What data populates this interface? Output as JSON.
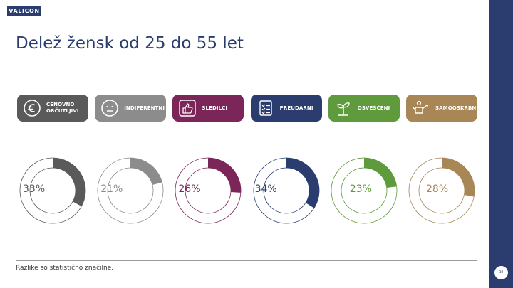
{
  "logo": {
    "text": "VALICON"
  },
  "title": "Delež žensk od 25 do 55 let",
  "footnote": "Razlike so statistično značilne.",
  "page_number": "19",
  "segments": [
    {
      "name": "CENOVNO OBČUTLJIVI",
      "lines": [
        "CENOVNO",
        "OBČUTLJIVI"
      ],
      "icon": "euro-icon",
      "color": "#5a5a5a"
    },
    {
      "name": "INDIFERENTNI",
      "lines": [
        "INDIFERENTNI"
      ],
      "icon": "neutral-face-icon",
      "color": "#8c8c8c"
    },
    {
      "name": "SLEDILCI",
      "lines": [
        "SLEDILCI"
      ],
      "icon": "thumbs-up-icon",
      "color": "#7b2559"
    },
    {
      "name": "PREUDARNI",
      "lines": [
        "PREUDARNI"
      ],
      "icon": "checklist-icon",
      "color": "#2a3d6e"
    },
    {
      "name": "OSVEŠČENI",
      "lines": [
        "OSVEŠČENI"
      ],
      "icon": "seedling-icon",
      "color": "#5f9a3c"
    },
    {
      "name": "SAMOOSKRBNI",
      "lines": [
        "SAMOOSKRBNI"
      ],
      "icon": "watering-can-icon",
      "color": "#a88655"
    }
  ],
  "chart_data": {
    "type": "pie",
    "title": "Delež žensk od 25 do 55 let",
    "categories": [
      "CENOVNO OBČUTLJIVI",
      "INDIFERENTNI",
      "SLEDILCI",
      "PREUDARNI",
      "OSVEŠČENI",
      "SAMOOSKRBNI"
    ],
    "values": [
      33,
      21,
      26,
      34,
      23,
      28
    ],
    "labels": [
      "33%",
      "21%",
      "26%",
      "34%",
      "23%",
      "28%"
    ],
    "colors": [
      "#5a5a5a",
      "#8c8c8c",
      "#7b2559",
      "#2a3d6e",
      "#5f9a3c",
      "#a88655"
    ],
    "ring_color": "#ffffff",
    "unit": "%"
  }
}
